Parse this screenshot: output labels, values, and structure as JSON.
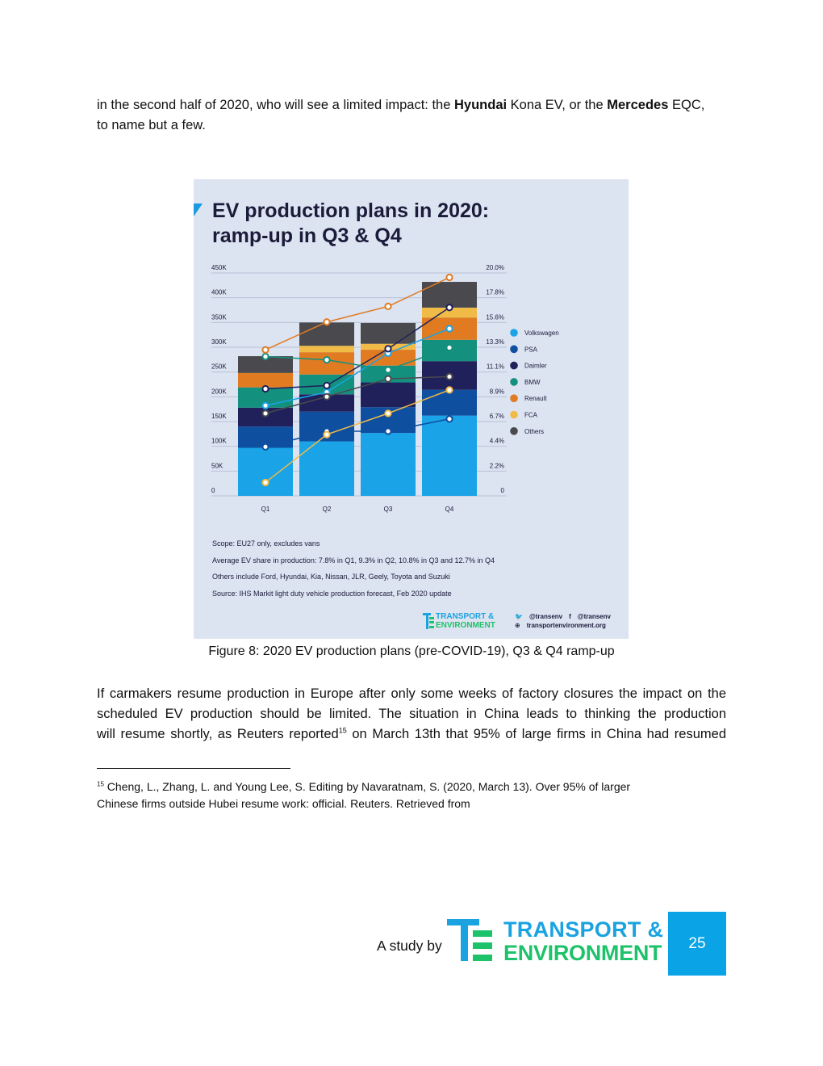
{
  "body": {
    "p1_line1_a": "in the second half of 2020, who will see a limited impact: the ",
    "p1_bold1": "Hyundai",
    "p1_line1_b": " Kona EV, or the ",
    "p1_bold2": "Mercedes",
    "p1_line1_c": " EQC,",
    "p1_line2": "to name but a few.",
    "p2_line1": "If carmakers resume production in Europe after only some weeks of factory closures the impact on the",
    "p2_line2": "scheduled EV production should be limited. The situation in China leads to thinking the production",
    "p2_line3_a": "will resume shortly, as Reuters reported",
    "p2_footnote_ref": "15",
    "p2_line3_b": " on March 13th that 95% of large firms in China had resumed"
  },
  "figure": {
    "caption": "Figure 8: 2020 EV production plans (pre-COVID-19), Q3 & Q4 ramp-up",
    "title_line1": "EV production plans in 2020:",
    "title_line2": "ramp-up in Q3 & Q4",
    "notes": [
      "Scope: EU27 only, excludes vans",
      "Average EV share in production: 7.8% in Q1, 9.3% in Q2, 10.8% in Q3 and 12.7% in Q4",
      "Others include Ford, Hyundai, Kia, Nissan, JLR, Geely, Toyota and Suzuki",
      "Source:  IHS Markit light duty vehicle production forecast, Feb 2020 update"
    ],
    "logo_line1": "TRANSPORT &",
    "logo_line2": "ENVIRONMENT",
    "twitter": "@transenv",
    "facebook": "@transenv",
    "website": "transportenvironment.org"
  },
  "chart_data": {
    "type": "bar",
    "stacked": true,
    "categories": [
      "Q1",
      "Q2",
      "Q3",
      "Q4"
    ],
    "left_axis": {
      "ylim": [
        0,
        450000
      ],
      "ticks": [
        "0",
        "50K",
        "100K",
        "150K",
        "200K",
        "250K",
        "300K",
        "350K",
        "400K",
        "450K"
      ]
    },
    "right_axis": {
      "ylim": [
        0,
        20.0
      ],
      "ticks": [
        "0",
        "2.2%",
        "4.4%",
        "6.7%",
        "8.9%",
        "11.1%",
        "13.3%",
        "15.6%",
        "17.8%",
        "20.0%"
      ]
    },
    "series": [
      {
        "name": "Volkswagen",
        "color": "#1aa3e6",
        "values": [
          97000,
          110000,
          127000,
          162000
        ],
        "share": [
          8.1,
          9.3,
          12.8,
          15.0
        ]
      },
      {
        "name": "PSA",
        "color": "#0f4fa0",
        "values": [
          43000,
          60000,
          52000,
          52000
        ],
        "share": [
          4.4,
          5.8,
          5.8,
          6.9
        ]
      },
      {
        "name": "Daimler",
        "color": "#20215a",
        "values": [
          38000,
          35000,
          50000,
          58000
        ],
        "share": [
          9.6,
          9.9,
          13.2,
          16.9
        ]
      },
      {
        "name": "BMW",
        "color": "#14907f",
        "values": [
          41000,
          40000,
          34000,
          43000
        ],
        "share": [
          12.5,
          12.2,
          11.3,
          13.3
        ]
      },
      {
        "name": "Renault",
        "color": "#e07b22",
        "values": [
          29000,
          45000,
          32000,
          45000
        ],
        "share": [
          13.1,
          15.6,
          17.0,
          19.6
        ]
      },
      {
        "name": "FCA",
        "color": "#f0bb47",
        "values": [
          0,
          13000,
          12000,
          20000
        ],
        "share": [
          1.2,
          5.5,
          7.4,
          9.5
        ]
      },
      {
        "name": "Others",
        "color": "#4a4a4e",
        "values": [
          34000,
          47000,
          42000,
          52000
        ],
        "share": [
          7.4,
          8.9,
          10.5,
          10.7
        ]
      }
    ]
  },
  "footnote": {
    "number": "15",
    "line1": " Cheng, L., Zhang, L. and  Young Lee, S. Editing by Navaratnam, S. (2020, March 13). Over 95% of larger",
    "line2": "Chinese firms outside Hubei resume work: official.  Reuters. Retrieved from"
  },
  "footer": {
    "study_by": "A study by",
    "logo_line1": "TRANSPORT &",
    "logo_line2": "ENVIRONMENT",
    "page_number": "25"
  }
}
